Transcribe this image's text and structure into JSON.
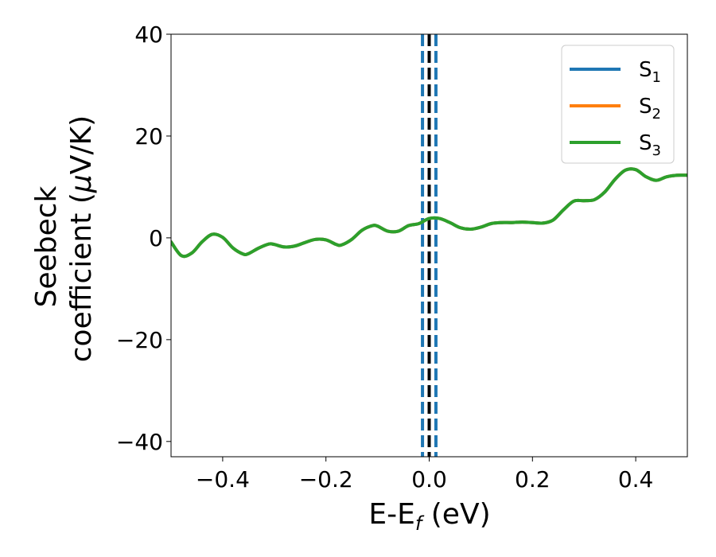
{
  "chart_data": {
    "type": "line",
    "xlabel": "E-E",
    "xlabel_sub": "f",
    "xlabel_unit": " (eV)",
    "ylabel_line1": "Seebeck",
    "ylabel_line2_pre": "coefficient  (",
    "ylabel_mu": "μ",
    "ylabel_line2_post": "V/K)",
    "xlim": [
      -0.5,
      0.5
    ],
    "ylim": [
      -43,
      40
    ],
    "x_ticks": [
      -0.4,
      -0.2,
      0.0,
      0.2,
      0.4
    ],
    "x_tick_labels": [
      "−0.4",
      "−0.2",
      "0.0",
      "0.2",
      "0.4"
    ],
    "y_ticks": [
      -40,
      -20,
      0,
      20,
      40
    ],
    "y_tick_labels": [
      "−40",
      "−20",
      "0",
      "20",
      "40"
    ],
    "grid": false,
    "legend_position": "top-right",
    "series": [
      {
        "name": "S",
        "sub": "1",
        "color": "#1f77b4"
      },
      {
        "name": "S",
        "sub": "2",
        "color": "#ff7f0e"
      },
      {
        "name": "S",
        "sub": "3",
        "color": "#2ca02c"
      }
    ],
    "curve_x": [
      -0.5,
      -0.48,
      -0.46,
      -0.44,
      -0.42,
      -0.4,
      -0.38,
      -0.36,
      -0.35,
      -0.33,
      -0.31,
      -0.3,
      -0.28,
      -0.26,
      -0.24,
      -0.22,
      -0.2,
      -0.18,
      -0.17,
      -0.15,
      -0.13,
      -0.11,
      -0.1,
      -0.08,
      -0.06,
      -0.04,
      -0.02,
      0.0,
      0.02,
      0.04,
      0.06,
      0.08,
      0.1,
      0.12,
      0.14,
      0.16,
      0.18,
      0.2,
      0.22,
      0.24,
      0.26,
      0.28,
      0.3,
      0.32,
      0.34,
      0.36,
      0.38,
      0.4,
      0.42,
      0.44,
      0.46,
      0.48,
      0.5
    ],
    "curve_y": [
      -0.8,
      -3.5,
      -3.0,
      -0.8,
      0.7,
      0.1,
      -2.0,
      -3.2,
      -3.1,
      -2.0,
      -1.2,
      -1.3,
      -1.8,
      -1.6,
      -0.9,
      -0.3,
      -0.4,
      -1.3,
      -1.4,
      -0.3,
      1.5,
      2.4,
      2.3,
      1.3,
      1.3,
      2.4,
      2.8,
      3.8,
      3.8,
      3.0,
      2.0,
      1.7,
      2.1,
      2.8,
      3.0,
      3.0,
      3.1,
      3.0,
      2.9,
      3.5,
      5.5,
      7.2,
      7.3,
      7.5,
      9.0,
      11.5,
      13.3,
      13.4,
      12.0,
      11.3,
      12.0,
      12.3,
      12.3
    ],
    "fermi_level_x": 0.0,
    "dashed_lines_x": [
      -0.013,
      0.013
    ]
  }
}
